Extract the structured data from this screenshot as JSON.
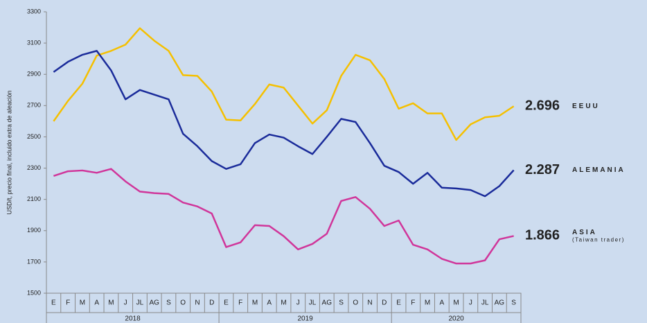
{
  "chart_data": {
    "type": "line",
    "y_label": "USD/t, precio final, incluido extra de aleación",
    "categories": [
      "E",
      "F",
      "M",
      "A",
      "M",
      "J",
      "JL",
      "AG",
      "S",
      "O",
      "N",
      "D",
      "E",
      "F",
      "M",
      "A",
      "M",
      "J",
      "JL",
      "AG",
      "S",
      "O",
      "N",
      "D",
      "E",
      "F",
      "M",
      "A",
      "M",
      "J",
      "JL",
      "AG",
      "S"
    ],
    "years": [
      "2018",
      "2019",
      "2020"
    ],
    "ylim": [
      1500,
      3300
    ],
    "yticks": [
      1500,
      1700,
      1900,
      2100,
      2300,
      2500,
      2700,
      2900,
      3100,
      3300
    ],
    "series": [
      {
        "name": "EEUU",
        "color": "#f5c000",
        "values": [
          2600,
          2730,
          2840,
          3020,
          3050,
          3090,
          3195,
          3115,
          3050,
          2895,
          2890,
          2790,
          2610,
          2605,
          2710,
          2835,
          2815,
          2700,
          2585,
          2670,
          2890,
          3025,
          2990,
          2870,
          2680,
          2715,
          2650,
          2650,
          2480,
          2580,
          2625,
          2635,
          2696
        ],
        "value_labels": [
          null,
          null,
          null,
          null,
          null,
          null,
          null,
          null,
          null,
          null,
          null,
          null,
          null,
          null,
          null,
          null,
          null,
          null,
          null,
          null,
          null,
          null,
          null,
          null,
          null,
          null,
          null,
          null,
          null,
          null,
          null,
          null,
          "2.696"
        ]
      },
      {
        "name": "ALEMANIA",
        "color": "#1a2b9a",
        "values": [
          2915,
          2980,
          3025,
          3050,
          2925,
          2740,
          2800,
          2770,
          2740,
          2520,
          2440,
          2345,
          2295,
          2325,
          2460,
          2515,
          2495,
          2440,
          2390,
          2500,
          2615,
          2595,
          2460,
          2315,
          2275,
          2200,
          2270,
          2175,
          2170,
          2160,
          2120,
          2185,
          2287
        ],
        "value_labels": [
          null,
          null,
          null,
          null,
          null,
          null,
          null,
          null,
          null,
          null,
          null,
          null,
          null,
          null,
          null,
          null,
          null,
          null,
          null,
          null,
          null,
          null,
          null,
          null,
          null,
          null,
          null,
          null,
          null,
          null,
          null,
          null,
          "2.287"
        ]
      },
      {
        "name": "ASIA",
        "note": "(Taiwan trader)",
        "color": "#d0359a",
        "values": [
          2250,
          2280,
          2285,
          2270,
          2295,
          2215,
          2150,
          2140,
          2135,
          2080,
          2055,
          2010,
          1795,
          1825,
          1935,
          1930,
          1865,
          1780,
          1815,
          1880,
          2090,
          2115,
          2040,
          1930,
          1965,
          1810,
          1780,
          1720,
          1690,
          1690,
          1710,
          1845,
          1866
        ],
        "value_labels": [
          null,
          null,
          null,
          null,
          null,
          null,
          null,
          null,
          null,
          null,
          null,
          null,
          null,
          null,
          null,
          null,
          null,
          null,
          null,
          null,
          null,
          null,
          null,
          null,
          null,
          null,
          null,
          null,
          null,
          null,
          null,
          null,
          "1.866"
        ]
      }
    ]
  }
}
